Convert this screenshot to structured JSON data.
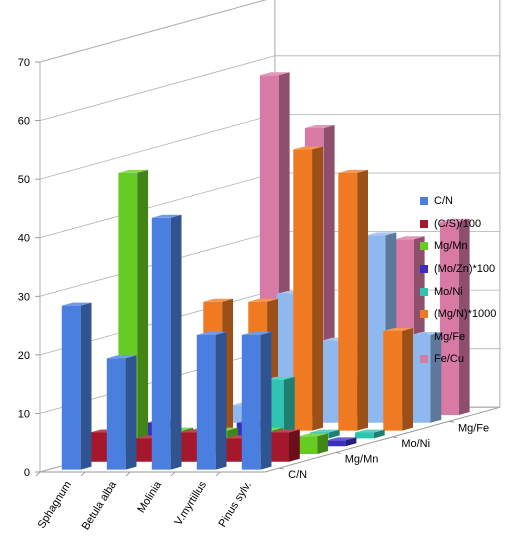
{
  "chart_data": {
    "type": "bar",
    "title": "",
    "xlabel": "",
    "ylabel": "",
    "ylim": [
      0,
      70
    ],
    "yticks": [
      0,
      10,
      20,
      30,
      40,
      50,
      60,
      70
    ],
    "categories": [
      "Sphagnum",
      "Betula alba",
      "Molinia",
      "V.myrtillus",
      "Pinus sylv."
    ],
    "depth_tick_labels": [
      "C/N",
      "Mg/Mn",
      "Mo/Ni",
      "Mg/Fe"
    ],
    "grid": true,
    "legend_position": "right",
    "series": [
      {
        "name": "C/N",
        "color": "#4A7FE0",
        "values": [
          28,
          19,
          43,
          23,
          23
        ]
      },
      {
        "name": "(C/S)/100",
        "color": "#A5172B",
        "values": [
          5,
          4,
          5,
          4,
          5
        ]
      },
      {
        "name": "Mg/Mn",
        "color": "#66CC22",
        "values": [
          48,
          4,
          4,
          4,
          3
        ]
      },
      {
        "name": "(Mo/Zn)*100",
        "color": "#3A2EBF",
        "values": [
          4,
          0,
          4,
          1,
          1
        ]
      },
      {
        "name": "Mo/Ni",
        "color": "#2EC4B0",
        "values": [
          0,
          1,
          10,
          1,
          1
        ]
      },
      {
        "name": "(Mg/N)*1000",
        "color": "#F07A22",
        "values": [
          22,
          22,
          48,
          44,
          17
        ]
      },
      {
        "name": "Mg/Fe",
        "color": "#8EB8EE",
        "values": [
          3,
          22,
          14,
          32,
          15
        ]
      },
      {
        "name": "Fe/Cu",
        "color": "#D97AA5",
        "values": [
          58,
          49,
          6,
          30,
          33
        ]
      }
    ]
  }
}
